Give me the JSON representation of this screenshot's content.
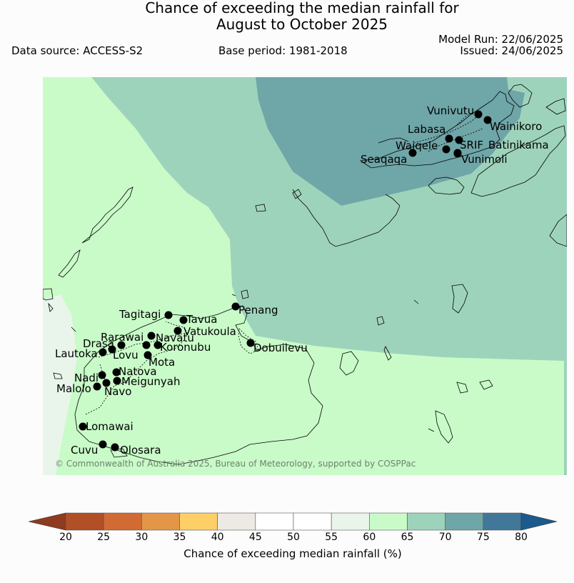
{
  "header": {
    "title_line1": "Chance of exceeding the median rainfall for",
    "title_line2": "August to October 2025",
    "model_run": "Model Run: 22/06/2025",
    "issued": "Issued: 24/06/2025",
    "data_source": "Data source: ACCESS-S2",
    "base_period": "Base period: 1981-2018"
  },
  "map": {
    "copyright": "© Commonwealth of Australia 2025, Bureau of Meteorology, supported by COSPPac",
    "colors": {
      "band_55_60": "#e9f5ea",
      "band_60_65": "#c9fbc9",
      "band_65_70": "#9ed3bb",
      "band_70_75": "#6fa6a8",
      "coast": "#000000"
    },
    "stations": [
      {
        "name": "Vunivutu"
      },
      {
        "name": "Wainikoro"
      },
      {
        "name": "Labasa"
      },
      {
        "name": "SRIF"
      },
      {
        "name": "Batinikama"
      },
      {
        "name": "Waiqele"
      },
      {
        "name": "Seaqaqa"
      },
      {
        "name": "Vunimoli"
      },
      {
        "name": "Penang"
      },
      {
        "name": "Tagitagi"
      },
      {
        "name": "Tavua"
      },
      {
        "name": "Vatukoula"
      },
      {
        "name": "Rarawai"
      },
      {
        "name": "Navatu"
      },
      {
        "name": "Drasa"
      },
      {
        "name": "Koronubu"
      },
      {
        "name": "Lautoka"
      },
      {
        "name": "Lovu"
      },
      {
        "name": "Dobuilevu"
      },
      {
        "name": "Mota"
      },
      {
        "name": "Natova"
      },
      {
        "name": "Nadi"
      },
      {
        "name": "Meigunyah"
      },
      {
        "name": "Malolo"
      },
      {
        "name": "Navo"
      },
      {
        "name": "Lomawai"
      },
      {
        "name": "Cuvu"
      },
      {
        "name": "Olosara"
      }
    ]
  },
  "colorbar": {
    "label": "Chance of exceeding median rainfall (%)",
    "ticks": [
      "20",
      "25",
      "30",
      "35",
      "40",
      "45",
      "50",
      "55",
      "60",
      "65",
      "70",
      "75",
      "80"
    ],
    "under_color": "#8e3b1f",
    "over_color": "#1b5a8c",
    "colors": [
      "#b14f27",
      "#d16a33",
      "#e39648",
      "#fdcf66",
      "#ede9e5",
      "#ffffff",
      "#ffffff",
      "#e9f5ea",
      "#c9fbc9",
      "#9ed3bb",
      "#6fa6a8",
      "#41789a"
    ]
  }
}
